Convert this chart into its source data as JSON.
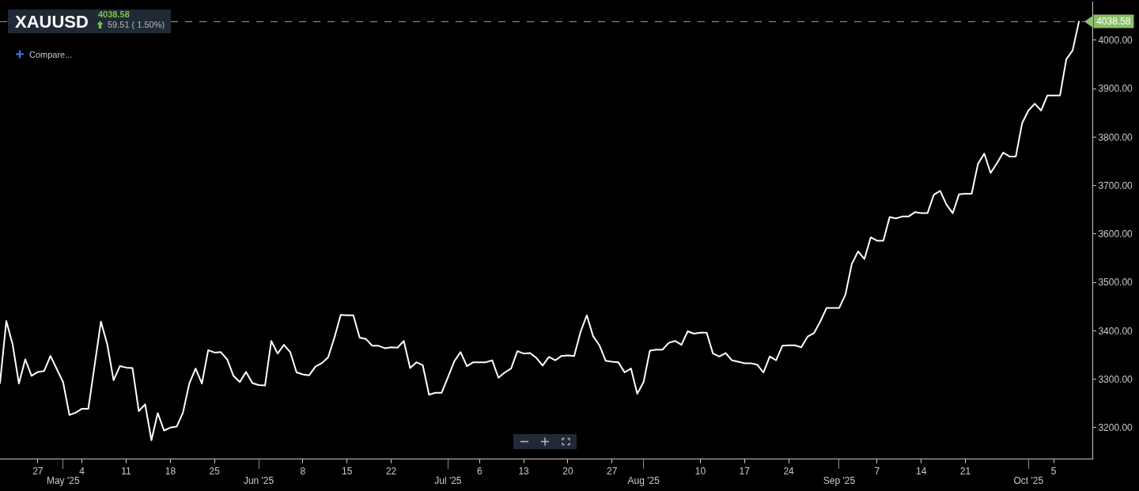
{
  "chart_data": {
    "type": "line",
    "title": "XAUUSD",
    "subtitle": "4038.58",
    "annotations": [
      "59.51 ( 1.50%)",
      "Compare..."
    ],
    "x": [
      "2025-04-21",
      "2025-04-22",
      "2025-04-23",
      "2025-04-24",
      "2025-04-25",
      "2025-04-26",
      "2025-04-27",
      "2025-04-28",
      "2025-04-29",
      "2025-04-30",
      "2025-05-01",
      "2025-05-02",
      "2025-05-03",
      "2025-05-04",
      "2025-05-05",
      "2025-05-06",
      "2025-05-07",
      "2025-05-08",
      "2025-05-09",
      "2025-05-10",
      "2025-05-11",
      "2025-05-12",
      "2025-05-13",
      "2025-05-14",
      "2025-05-15",
      "2025-05-16",
      "2025-05-17",
      "2025-05-18",
      "2025-05-19",
      "2025-05-20",
      "2025-05-21",
      "2025-05-22",
      "2025-05-23",
      "2025-05-24",
      "2025-05-25",
      "2025-05-26",
      "2025-05-27",
      "2025-05-28",
      "2025-05-29",
      "2025-05-30",
      "2025-05-31",
      "2025-06-01",
      "2025-06-02",
      "2025-06-03",
      "2025-06-04",
      "2025-06-05",
      "2025-06-06",
      "2025-06-07",
      "2025-06-08",
      "2025-06-09",
      "2025-06-10",
      "2025-06-11",
      "2025-06-12",
      "2025-06-13",
      "2025-06-14",
      "2025-06-15",
      "2025-06-16",
      "2025-06-17",
      "2025-06-18",
      "2025-06-19",
      "2025-06-20",
      "2025-06-21",
      "2025-06-22",
      "2025-06-23",
      "2025-06-24",
      "2025-06-25",
      "2025-06-26",
      "2025-06-27",
      "2025-06-28",
      "2025-06-29",
      "2025-06-30",
      "2025-07-01",
      "2025-07-02",
      "2025-07-03",
      "2025-07-04",
      "2025-07-05",
      "2025-07-06",
      "2025-07-07",
      "2025-07-08",
      "2025-07-09",
      "2025-07-10",
      "2025-07-11",
      "2025-07-12",
      "2025-07-13",
      "2025-07-14",
      "2025-07-15",
      "2025-07-16",
      "2025-07-17",
      "2025-07-18",
      "2025-07-19",
      "2025-07-20",
      "2025-07-21",
      "2025-07-22",
      "2025-07-23",
      "2025-07-24",
      "2025-07-25",
      "2025-07-26",
      "2025-07-27",
      "2025-07-28",
      "2025-07-29",
      "2025-07-30",
      "2025-07-31",
      "2025-08-01",
      "2025-08-02",
      "2025-08-03",
      "2025-08-04",
      "2025-08-05",
      "2025-08-06",
      "2025-08-07",
      "2025-08-08",
      "2025-08-09",
      "2025-08-10",
      "2025-08-11",
      "2025-08-12",
      "2025-08-13",
      "2025-08-14",
      "2025-08-15",
      "2025-08-16",
      "2025-08-17",
      "2025-08-18",
      "2025-08-19",
      "2025-08-20",
      "2025-08-21",
      "2025-08-22",
      "2025-08-23",
      "2025-08-24",
      "2025-08-25",
      "2025-08-26",
      "2025-08-27",
      "2025-08-28",
      "2025-08-29",
      "2025-08-30",
      "2025-08-31",
      "2025-09-01",
      "2025-09-02",
      "2025-09-03",
      "2025-09-04",
      "2025-09-05",
      "2025-09-06",
      "2025-09-07",
      "2025-09-08",
      "2025-09-09",
      "2025-09-10",
      "2025-09-11",
      "2025-09-12",
      "2025-09-13",
      "2025-09-14",
      "2025-09-15",
      "2025-09-16",
      "2025-09-17",
      "2025-09-18",
      "2025-09-19",
      "2025-09-20",
      "2025-09-21",
      "2025-09-22",
      "2025-09-23",
      "2025-09-24",
      "2025-09-25",
      "2025-09-26",
      "2025-09-27",
      "2025-09-28",
      "2025-09-29",
      "2025-09-30",
      "2025-10-01",
      "2025-10-02",
      "2025-10-03",
      "2025-10-04",
      "2025-10-05",
      "2025-10-06",
      "2025-10-07",
      "2025-10-08",
      "2025-10-09"
    ],
    "series": [
      {
        "color": "#ffffff",
        "values": [
          3292,
          3420,
          3372,
          3291,
          3341,
          3307,
          3315,
          3317,
          3348,
          3321,
          3294,
          3226,
          3231,
          3239,
          3239,
          3329,
          3419,
          3372,
          3298,
          3327,
          3324,
          3323,
          3234,
          3248,
          3174,
          3230,
          3194,
          3200,
          3202,
          3231,
          3291,
          3322,
          3291,
          3360,
          3355,
          3356,
          3341,
          3307,
          3294,
          3315,
          3292,
          3288,
          3287,
          3379,
          3353,
          3371,
          3356,
          3314,
          3310,
          3308,
          3326,
          3333,
          3345,
          3386,
          3433,
          3432,
          3432,
          3386,
          3383,
          3369,
          3369,
          3364,
          3366,
          3365,
          3379,
          3323,
          3335,
          3329,
          3268,
          3272,
          3272,
          3304,
          3337,
          3356,
          3327,
          3335,
          3335,
          3335,
          3339,
          3303,
          3314,
          3322,
          3358,
          3353,
          3354,
          3344,
          3328,
          3346,
          3339,
          3348,
          3349,
          3348,
          3397,
          3432,
          3389,
          3370,
          3338,
          3336,
          3335,
          3314,
          3322,
          3270,
          3294,
          3359,
          3361,
          3361,
          3375,
          3379,
          3371,
          3399,
          3394,
          3396,
          3396,
          3353,
          3347,
          3354,
          3339,
          3336,
          3333,
          3333,
          3330,
          3314,
          3347,
          3339,
          3369,
          3370,
          3370,
          3366,
          3388,
          3395,
          3419,
          3447,
          3447,
          3447,
          3475,
          3538,
          3564,
          3548,
          3593,
          3586,
          3586,
          3635,
          3632,
          3636,
          3636,
          3645,
          3643,
          3643,
          3681,
          3689,
          3661,
          3643,
          3682,
          3683,
          3683,
          3745,
          3766,
          3726,
          3746,
          3768,
          3760,
          3760,
          3829,
          3855,
          3869,
          3855,
          3886,
          3886,
          3886,
          3961,
          3979,
          4038.58
        ]
      }
    ],
    "xlim": [
      "2025-04-21",
      "2025-10-11T03:00"
    ],
    "xticks": [
      {
        "value": "2025-04-27",
        "label": "27"
      },
      {
        "value": "2025-05-04",
        "label": "4"
      },
      {
        "value": "2025-05-11",
        "label": "11"
      },
      {
        "value": "2025-05-18",
        "label": "18"
      },
      {
        "value": "2025-05-25",
        "label": "25"
      },
      {
        "value": "2025-06-08",
        "label": "8"
      },
      {
        "value": "2025-06-15",
        "label": "15"
      },
      {
        "value": "2025-06-22",
        "label": "22"
      },
      {
        "value": "2025-07-06",
        "label": "6"
      },
      {
        "value": "2025-07-13",
        "label": "13"
      },
      {
        "value": "2025-07-20",
        "label": "20"
      },
      {
        "value": "2025-07-27",
        "label": "27"
      },
      {
        "value": "2025-08-10",
        "label": "10"
      },
      {
        "value": "2025-08-17",
        "label": "17"
      },
      {
        "value": "2025-08-24",
        "label": "24"
      },
      {
        "value": "2025-09-07",
        "label": "7"
      },
      {
        "value": "2025-09-14",
        "label": "14"
      },
      {
        "value": "2025-09-21",
        "label": "21"
      },
      {
        "value": "2025-10-05",
        "label": "5"
      }
    ],
    "x2lim": [
      "2025-04-21",
      "2025-10-11T03:00"
    ],
    "x2ticks": [
      {
        "value": "2025-05-01",
        "label": "May '25"
      },
      {
        "value": "2025-06-01",
        "label": "Jun '25"
      },
      {
        "value": "2025-07-01",
        "label": "Jul '25"
      },
      {
        "value": "2025-08-01",
        "label": "Aug '25"
      },
      {
        "value": "2025-09-01",
        "label": "Sep '25"
      },
      {
        "value": "2025-10-01",
        "label": "Oct '25"
      }
    ],
    "ylim": [
      3136,
      4080
    ],
    "yticks": [
      {
        "value": 3200,
        "label": "3200.00"
      },
      {
        "value": 3300,
        "label": "3300.00"
      },
      {
        "value": 3400,
        "label": "3400.00"
      },
      {
        "value": 3500,
        "label": "3500.00"
      },
      {
        "value": 3600,
        "label": "3600.00"
      },
      {
        "value": 3700,
        "label": "3700.00"
      },
      {
        "value": 3800,
        "label": "3800.00"
      },
      {
        "value": 3900,
        "label": "3900.00"
      },
      {
        "value": 4000,
        "label": "4000.00"
      }
    ],
    "ref_lines": [
      {
        "axis": "y",
        "value": 4038.58,
        "label": "4038.58",
        "color": "#8cc06a",
        "line_style": "dashed"
      }
    ]
  }
}
